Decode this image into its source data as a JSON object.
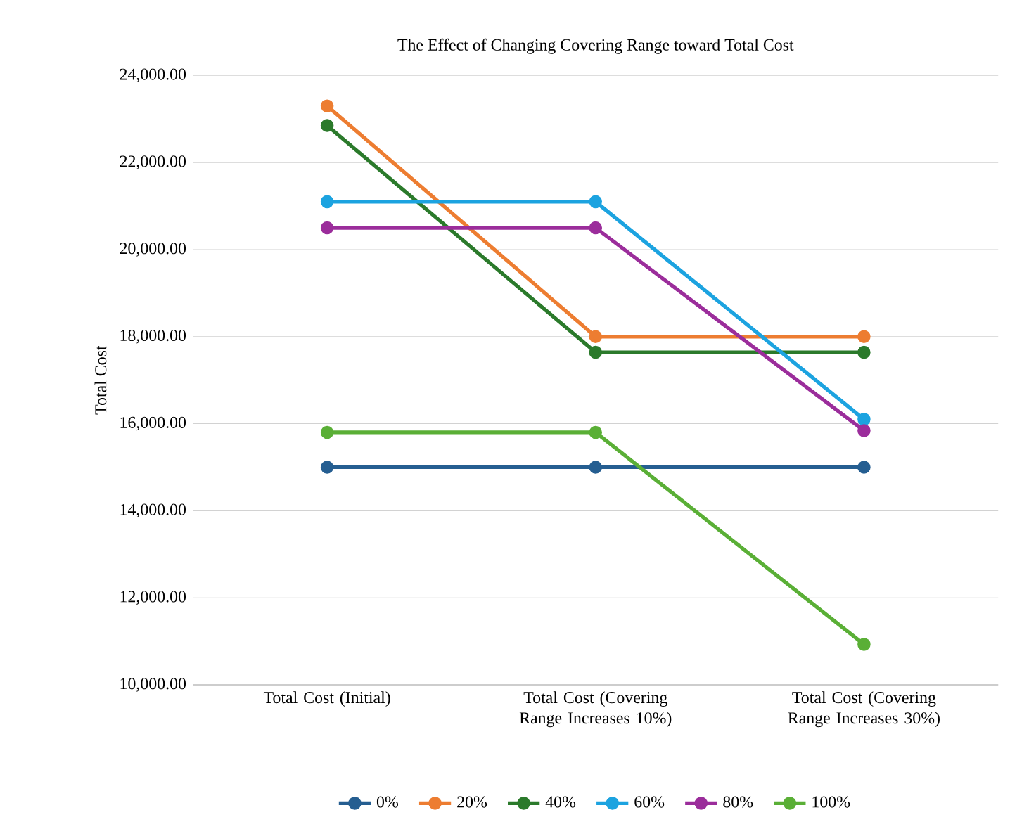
{
  "chart_data": {
    "type": "line",
    "title": "The Effect of Changing Covering Range toward Total Cost",
    "ylabel": "Total Cost",
    "categories": [
      "Total Cost (Initial)",
      "Total Cost (Covering Range Increases 10%)",
      "Total Cost (Covering Range Increases 30%)"
    ],
    "series": [
      {
        "name": "0%",
        "color": "#255e91",
        "values": [
          15000,
          15000,
          15000
        ]
      },
      {
        "name": "20%",
        "color": "#ed7d31",
        "values": [
          23300,
          18000,
          18000
        ]
      },
      {
        "name": "40%",
        "color": "#2b7a2b",
        "values": [
          22850,
          17640,
          17640
        ]
      },
      {
        "name": "60%",
        "color": "#1ca3e0",
        "values": [
          21100,
          21100,
          16100
        ]
      },
      {
        "name": "80%",
        "color": "#9b2d9b",
        "values": [
          20500,
          20500,
          15840
        ]
      },
      {
        "name": "100%",
        "color": "#5aaf36",
        "values": [
          15800,
          15800,
          10930
        ]
      }
    ],
    "ylim": [
      10000,
      24000
    ],
    "yticks": [
      {
        "value": 10000,
        "label": "10,000.00"
      },
      {
        "value": 12000,
        "label": "12,000.00"
      },
      {
        "value": 14000,
        "label": "14,000.00"
      },
      {
        "value": 16000,
        "label": "16,000.00"
      },
      {
        "value": 18000,
        "label": "18,000.00"
      },
      {
        "value": 20000,
        "label": "20,000.00"
      },
      {
        "value": 22000,
        "label": "22,000.00"
      },
      {
        "value": 24000,
        "label": "24,000.00"
      }
    ],
    "grid": "y",
    "legend": "bottom",
    "marker": "circle",
    "line_style": "solid"
  }
}
